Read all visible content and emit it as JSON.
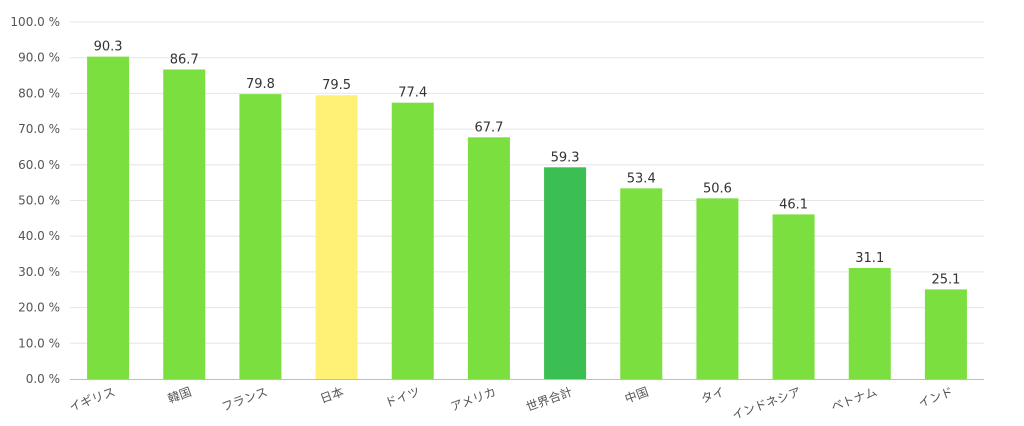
{
  "chart_data": {
    "type": "bar",
    "categories": [
      "イギリス",
      "韓国",
      "フランス",
      "日本",
      "ドイツ",
      "アメリカ",
      "世界合計",
      "中国",
      "タイ",
      "インドネシア",
      "ベトナム",
      "インド"
    ],
    "values": [
      90.3,
      86.7,
      79.8,
      79.5,
      77.4,
      67.7,
      59.3,
      53.4,
      50.6,
      46.1,
      31.1,
      25.1
    ],
    "data_labels": [
      "90.3",
      "86.7",
      "79.8",
      "79.5",
      "77.4",
      "67.7",
      "59.3",
      "53.4",
      "50.6",
      "46.1",
      "31.1",
      "25.1"
    ],
    "bar_colors": [
      "#7adf3f",
      "#7adf3f",
      "#7adf3f",
      "#fff176",
      "#7adf3f",
      "#7adf3f",
      "#3bbf52",
      "#7adf3f",
      "#7adf3f",
      "#7adf3f",
      "#7adf3f",
      "#7adf3f"
    ],
    "y_ticks": [
      "0.0 %",
      "10.0 %",
      "20.0 %",
      "30.0 %",
      "40.0 %",
      "50.0 %",
      "60.0 %",
      "70.0 %",
      "80.0 %",
      "90.0 %",
      "100.0 %"
    ],
    "ylim": [
      0,
      100
    ],
    "grid": true,
    "title": "",
    "xlabel": "",
    "ylabel": ""
  }
}
